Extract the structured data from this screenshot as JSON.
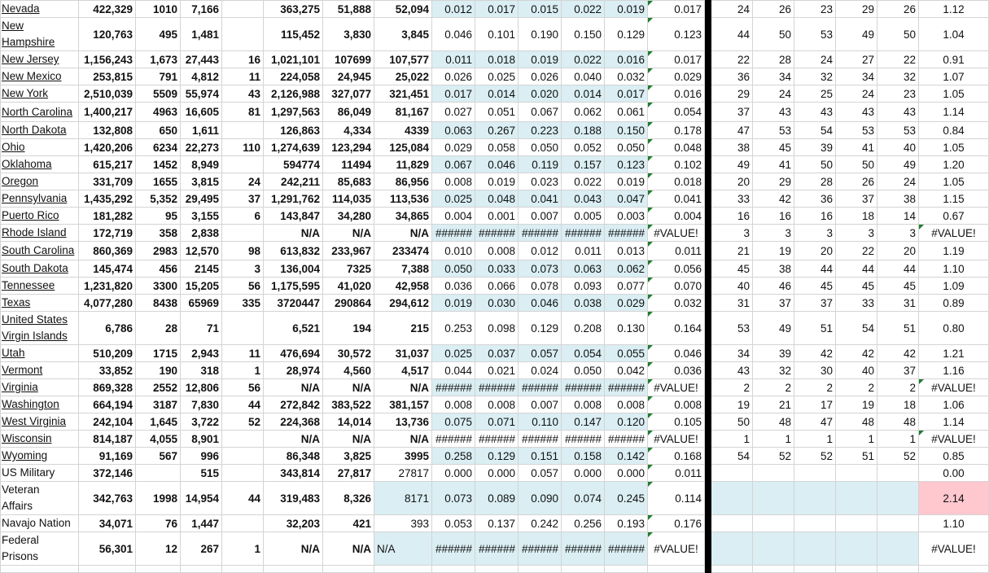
{
  "sheet": {
    "colors": {
      "highlight": "#daeef3",
      "alert": "#ffc7ce",
      "formula_marker": "#1e7b2d",
      "separator": "#000000"
    },
    "rows": [
      {
        "name": "Nevada",
        "link": true,
        "cells": [
          "422,329",
          "1010",
          "7,166",
          "",
          "363,275",
          "51,888",
          "52,094",
          "0.012",
          "0.017",
          "0.015",
          "0.022",
          "0.019",
          "0.017",
          "24",
          "26",
          "23",
          "29",
          "26",
          "1.12"
        ]
      },
      {
        "name": "New\nHampshire",
        "link": true,
        "cells": [
          "120,763",
          "495",
          "1,481",
          "",
          "115,452",
          "3,830",
          "3,845",
          "0.046",
          "0.101",
          "0.190",
          "0.150",
          "0.129",
          "0.123",
          "44",
          "50",
          "53",
          "49",
          "50",
          "1.04"
        ]
      },
      {
        "name": "New Jersey",
        "link": true,
        "cells": [
          "1,156,243",
          "1,673",
          "27,443",
          "16",
          "1,021,101",
          "107699",
          "107,577",
          "0.011",
          "0.018",
          "0.019",
          "0.022",
          "0.016",
          "0.017",
          "22",
          "28",
          "24",
          "27",
          "22",
          "0.91"
        ]
      },
      {
        "name": "New Mexico",
        "link": true,
        "cells": [
          "253,815",
          "791",
          "4,812",
          "11",
          "224,058",
          "24,945",
          "25,022",
          "0.026",
          "0.025",
          "0.026",
          "0.040",
          "0.032",
          "0.029",
          "36",
          "34",
          "32",
          "34",
          "32",
          "1.07"
        ]
      },
      {
        "name": "New York",
        "link": true,
        "cells": [
          "2,510,039",
          "5509",
          "55,974",
          "43",
          "2,126,988",
          "327,077",
          "321,451",
          "0.017",
          "0.014",
          "0.020",
          "0.014",
          "0.017",
          "0.016",
          "29",
          "24",
          "25",
          "24",
          "23",
          "1.05"
        ]
      },
      {
        "name": "North Carolina",
        "link": true,
        "cells": [
          "1,400,217",
          "4963",
          "16,605",
          "81",
          "1,297,563",
          "86,049",
          "81,167",
          "0.027",
          "0.051",
          "0.067",
          "0.062",
          "0.061",
          "0.054",
          "37",
          "43",
          "43",
          "43",
          "43",
          "1.14"
        ]
      },
      {
        "name": "North Dakota",
        "link": true,
        "cells": [
          "132,808",
          "650",
          "1,611",
          "",
          "126,863",
          "4,334",
          "4339",
          "0.063",
          "0.267",
          "0.223",
          "0.188",
          "0.150",
          "0.178",
          "47",
          "53",
          "54",
          "53",
          "53",
          "0.84"
        ]
      },
      {
        "name": "Ohio",
        "link": true,
        "cells": [
          "1,420,206",
          "6234",
          "22,273",
          "110",
          "1,274,639",
          "123,294",
          "125,084",
          "0.029",
          "0.058",
          "0.050",
          "0.052",
          "0.050",
          "0.048",
          "38",
          "45",
          "39",
          "41",
          "40",
          "1.05"
        ]
      },
      {
        "name": "Oklahoma",
        "link": true,
        "cells": [
          "615,217",
          "1452",
          "8,949",
          "",
          "594774",
          "11494",
          "11,829",
          "0.067",
          "0.046",
          "0.119",
          "0.157",
          "0.123",
          "0.102",
          "49",
          "41",
          "50",
          "50",
          "49",
          "1.20"
        ]
      },
      {
        "name": "Oregon",
        "link": true,
        "cells": [
          "331,709",
          "1655",
          "3,815",
          "24",
          "242,211",
          "85,683",
          "86,956",
          "0.008",
          "0.019",
          "0.023",
          "0.022",
          "0.019",
          "0.018",
          "20",
          "29",
          "28",
          "26",
          "24",
          "1.05"
        ]
      },
      {
        "name": "Pennsylvania",
        "link": true,
        "cells": [
          "1,435,292",
          "5,352",
          "29,495",
          "37",
          "1,291,762",
          "114,035",
          "113,536",
          "0.025",
          "0.048",
          "0.041",
          "0.043",
          "0.047",
          "0.041",
          "33",
          "42",
          "36",
          "37",
          "38",
          "1.15"
        ]
      },
      {
        "name": "Puerto Rico",
        "link": true,
        "cells": [
          "181,282",
          "95",
          "3,155",
          "6",
          "143,847",
          "34,280",
          "34,865",
          "0.004",
          "0.001",
          "0.007",
          "0.005",
          "0.003",
          "0.004",
          "16",
          "16",
          "16",
          "18",
          "14",
          "0.67"
        ]
      },
      {
        "name": "Rhode Island",
        "link": true,
        "cells": [
          "172,719",
          "358",
          "2,838",
          "",
          "N/A",
          "N/A",
          "N/A",
          "######",
          "######",
          "######",
          "######",
          "######",
          "#VALUE!",
          "3",
          "3",
          "3",
          "3",
          "3",
          "#VALUE!"
        ]
      },
      {
        "name": "South Carolina",
        "link": true,
        "cells": [
          "860,369",
          "2983",
          "12,570",
          "98",
          "613,832",
          "233,967",
          "233474",
          "0.010",
          "0.008",
          "0.012",
          "0.011",
          "0.013",
          "0.011",
          "21",
          "19",
          "20",
          "22",
          "20",
          "1.19"
        ]
      },
      {
        "name": "South Dakota",
        "link": true,
        "cells": [
          "145,474",
          "456",
          "2145",
          "3",
          "136,004",
          "7325",
          "7,388",
          "0.050",
          "0.033",
          "0.073",
          "0.063",
          "0.062",
          "0.056",
          "45",
          "38",
          "44",
          "44",
          "44",
          "1.10"
        ]
      },
      {
        "name": "Tennessee",
        "link": true,
        "cells": [
          "1,231,820",
          "3300",
          "15,205",
          "56",
          "1,175,595",
          "41,020",
          "42,958",
          "0.036",
          "0.066",
          "0.078",
          "0.093",
          "0.077",
          "0.070",
          "40",
          "46",
          "45",
          "45",
          "45",
          "1.09"
        ]
      },
      {
        "name": "Texas",
        "link": true,
        "cells": [
          "4,077,280",
          "8438",
          "65969",
          "335",
          "3720447",
          "290864",
          "294,612",
          "0.019",
          "0.030",
          "0.046",
          "0.038",
          "0.029",
          "0.032",
          "31",
          "37",
          "37",
          "33",
          "31",
          "0.89"
        ]
      },
      {
        "name": "United States\nVirgin Islands",
        "link": true,
        "cells": [
          "6,786",
          "28",
          "71",
          "",
          "6,521",
          "194",
          "215",
          "0.253",
          "0.098",
          "0.129",
          "0.208",
          "0.130",
          "0.164",
          "53",
          "49",
          "51",
          "54",
          "51",
          "0.80"
        ]
      },
      {
        "name": "Utah",
        "link": true,
        "cells": [
          "510,209",
          "1715",
          "2,943",
          "11",
          "476,694",
          "30,572",
          "31,037",
          "0.025",
          "0.037",
          "0.057",
          "0.054",
          "0.055",
          "0.046",
          "34",
          "39",
          "42",
          "42",
          "42",
          "1.21"
        ]
      },
      {
        "name": "Vermont",
        "link": true,
        "cells": [
          "33,852",
          "190",
          "318",
          "1",
          "28,974",
          "4,560",
          "4,517",
          "0.044",
          "0.021",
          "0.024",
          "0.050",
          "0.042",
          "0.036",
          "43",
          "32",
          "30",
          "40",
          "37",
          "1.16"
        ]
      },
      {
        "name": "Virginia",
        "link": true,
        "cells": [
          "869,328",
          "2552",
          "12,806",
          "56",
          "N/A",
          "N/A",
          "N/A",
          "######",
          "######",
          "######",
          "######",
          "######",
          "#VALUE!",
          "2",
          "2",
          "2",
          "2",
          "2",
          "#VALUE!"
        ]
      },
      {
        "name": "Washington",
        "link": true,
        "cells": [
          "664,194",
          "3187",
          "7,830",
          "44",
          "272,842",
          "383,522",
          "381,157",
          "0.008",
          "0.008",
          "0.007",
          "0.008",
          "0.008",
          "0.008",
          "19",
          "21",
          "17",
          "19",
          "18",
          "1.06"
        ]
      },
      {
        "name": "West Virginia",
        "link": true,
        "cells": [
          "242,104",
          "1,645",
          "3,722",
          "52",
          "224,368",
          "14,014",
          "13,736",
          "0.075",
          "0.071",
          "0.110",
          "0.147",
          "0.120",
          "0.105",
          "50",
          "48",
          "47",
          "48",
          "48",
          "1.14"
        ]
      },
      {
        "name": "Wisconsin",
        "link": true,
        "cells": [
          "814,187",
          "4,055",
          "8,901",
          "",
          "N/A",
          "N/A",
          "N/A",
          "######",
          "######",
          "######",
          "######",
          "######",
          "#VALUE!",
          "1",
          "1",
          "1",
          "1",
          "1",
          "#VALUE!"
        ]
      },
      {
        "name": "Wyoming",
        "link": true,
        "cells": [
          "91,169",
          "567",
          "996",
          "",
          "86,348",
          "3,825",
          "3995",
          "0.258",
          "0.129",
          "0.151",
          "0.158",
          "0.142",
          "0.168",
          "54",
          "52",
          "52",
          "51",
          "52",
          "0.85"
        ]
      },
      {
        "name": "US Military",
        "link": false,
        "cells": [
          "372,146",
          "",
          "515",
          "",
          "343,814",
          "27,817",
          "27817",
          "0.000",
          "0.000",
          "0.057",
          "0.000",
          "0.000",
          "0.011",
          "",
          "",
          "",
          "",
          "",
          "0.00"
        ]
      },
      {
        "name": "Veteran\nAffairs",
        "link": false,
        "cells": [
          "342,763",
          "1998",
          "14,954",
          "44",
          "319,483",
          "8,326",
          "8171",
          "0.073",
          "0.089",
          "0.090",
          "0.074",
          "0.245",
          "0.114",
          "",
          "",
          "",
          "",
          "",
          "2.14"
        ]
      },
      {
        "name": "Navajo Nation",
        "link": false,
        "cells": [
          "34,071",
          "76",
          "1,447",
          "",
          "32,203",
          "421",
          "393",
          "0.053",
          "0.137",
          "0.242",
          "0.256",
          "0.193",
          "0.176",
          "",
          "",
          "",
          "",
          "",
          "1.10"
        ]
      },
      {
        "name": "Federal\nPrisons",
        "link": false,
        "cells": [
          "56,301",
          "12",
          "267",
          "1",
          "N/A",
          "N/A",
          "N/A",
          "######",
          "######",
          "######",
          "######",
          "######",
          "#VALUE!",
          "",
          "",
          "",
          "",
          "",
          "#VALUE!"
        ]
      }
    ]
  }
}
